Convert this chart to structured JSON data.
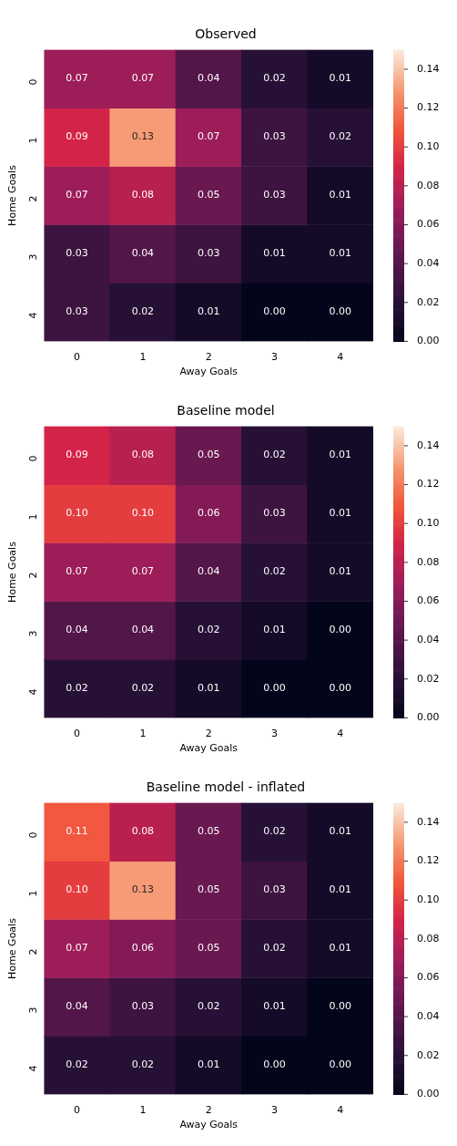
{
  "chart_data": [
    {
      "type": "heatmap",
      "title": "Observed",
      "xlabel": "Away Goals",
      "ylabel": "Home Goals",
      "categories": [
        "0",
        "1",
        "2",
        "3",
        "4"
      ],
      "y_categories": [
        "0",
        "1",
        "2",
        "3",
        "4"
      ],
      "cells": [
        [
          0.07,
          0.07,
          0.04,
          0.02,
          0.01
        ],
        [
          0.09,
          0.13,
          0.07,
          0.03,
          0.02
        ],
        [
          0.07,
          0.08,
          0.05,
          0.03,
          0.01
        ],
        [
          0.03,
          0.04,
          0.03,
          0.01,
          0.01
        ],
        [
          0.03,
          0.02,
          0.01,
          0.0,
          0.0
        ]
      ],
      "cell_labels": [
        [
          "0.07",
          "0.07",
          "0.04",
          "0.02",
          "0.01"
        ],
        [
          "0.09",
          "0.13",
          "0.07",
          "0.03",
          "0.02"
        ],
        [
          "0.07",
          "0.08",
          "0.05",
          "0.03",
          "0.01"
        ],
        [
          "0.03",
          "0.04",
          "0.03",
          "0.01",
          "0.01"
        ],
        [
          "0.03",
          "0.02",
          "0.01",
          "0.00",
          "0.00"
        ]
      ],
      "clim": [
        0,
        0.15
      ],
      "cticks": [
        {
          "value": 0,
          "label": "0.00"
        },
        {
          "value": 0.02,
          "label": "0.02"
        },
        {
          "value": 0.04,
          "label": "0.04"
        },
        {
          "value": 0.06,
          "label": "0.06"
        },
        {
          "value": 0.08,
          "label": "0.08"
        },
        {
          "value": 0.1,
          "label": "0.10"
        },
        {
          "value": 0.12,
          "label": "0.12"
        },
        {
          "value": 0.14,
          "label": "0.14"
        }
      ],
      "data_labels": true
    },
    {
      "type": "heatmap",
      "title": "Baseline model",
      "xlabel": "Away Goals",
      "ylabel": "Home Goals",
      "categories": [
        "0",
        "1",
        "2",
        "3",
        "4"
      ],
      "y_categories": [
        "0",
        "1",
        "2",
        "3",
        "4"
      ],
      "cells": [
        [
          0.09,
          0.08,
          0.05,
          0.02,
          0.01
        ],
        [
          0.1,
          0.1,
          0.06,
          0.03,
          0.01
        ],
        [
          0.07,
          0.07,
          0.04,
          0.02,
          0.01
        ],
        [
          0.04,
          0.04,
          0.02,
          0.01,
          0.0
        ],
        [
          0.02,
          0.02,
          0.01,
          0.0,
          0.0
        ]
      ],
      "cell_labels": [
        [
          "0.09",
          "0.08",
          "0.05",
          "0.02",
          "0.01"
        ],
        [
          "0.10",
          "0.10",
          "0.06",
          "0.03",
          "0.01"
        ],
        [
          "0.07",
          "0.07",
          "0.04",
          "0.02",
          "0.01"
        ],
        [
          "0.04",
          "0.04",
          "0.02",
          "0.01",
          "0.00"
        ],
        [
          "0.02",
          "0.02",
          "0.01",
          "0.00",
          "0.00"
        ]
      ],
      "clim": [
        0,
        0.15
      ],
      "cticks": [
        {
          "value": 0,
          "label": "0.00"
        },
        {
          "value": 0.02,
          "label": "0.02"
        },
        {
          "value": 0.04,
          "label": "0.04"
        },
        {
          "value": 0.06,
          "label": "0.06"
        },
        {
          "value": 0.08,
          "label": "0.08"
        },
        {
          "value": 0.1,
          "label": "0.10"
        },
        {
          "value": 0.12,
          "label": "0.12"
        },
        {
          "value": 0.14,
          "label": "0.14"
        }
      ],
      "data_labels": true
    },
    {
      "type": "heatmap",
      "title": "Baseline model - inflated",
      "xlabel": "Away Goals",
      "ylabel": "Home Goals",
      "categories": [
        "0",
        "1",
        "2",
        "3",
        "4"
      ],
      "y_categories": [
        "0",
        "1",
        "2",
        "3",
        "4"
      ],
      "cells": [
        [
          0.11,
          0.08,
          0.05,
          0.02,
          0.01
        ],
        [
          0.1,
          0.13,
          0.05,
          0.03,
          0.01
        ],
        [
          0.07,
          0.06,
          0.05,
          0.02,
          0.01
        ],
        [
          0.04,
          0.03,
          0.02,
          0.01,
          0.0
        ],
        [
          0.02,
          0.02,
          0.01,
          0.0,
          0.0
        ]
      ],
      "cell_labels": [
        [
          "0.11",
          "0.08",
          "0.05",
          "0.02",
          "0.01"
        ],
        [
          "0.10",
          "0.13",
          "0.05",
          "0.03",
          "0.01"
        ],
        [
          "0.07",
          "0.06",
          "0.05",
          "0.02",
          "0.01"
        ],
        [
          "0.04",
          "0.03",
          "0.02",
          "0.01",
          "0.00"
        ],
        [
          "0.02",
          "0.02",
          "0.01",
          "0.00",
          "0.00"
        ]
      ],
      "clim": [
        0,
        0.15
      ],
      "cticks": [
        {
          "value": 0,
          "label": "0.00"
        },
        {
          "value": 0.02,
          "label": "0.02"
        },
        {
          "value": 0.04,
          "label": "0.04"
        },
        {
          "value": 0.06,
          "label": "0.06"
        },
        {
          "value": 0.08,
          "label": "0.08"
        },
        {
          "value": 0.1,
          "label": "0.10"
        },
        {
          "value": 0.12,
          "label": "0.12"
        },
        {
          "value": 0.14,
          "label": "0.14"
        }
      ],
      "data_labels": true
    }
  ]
}
